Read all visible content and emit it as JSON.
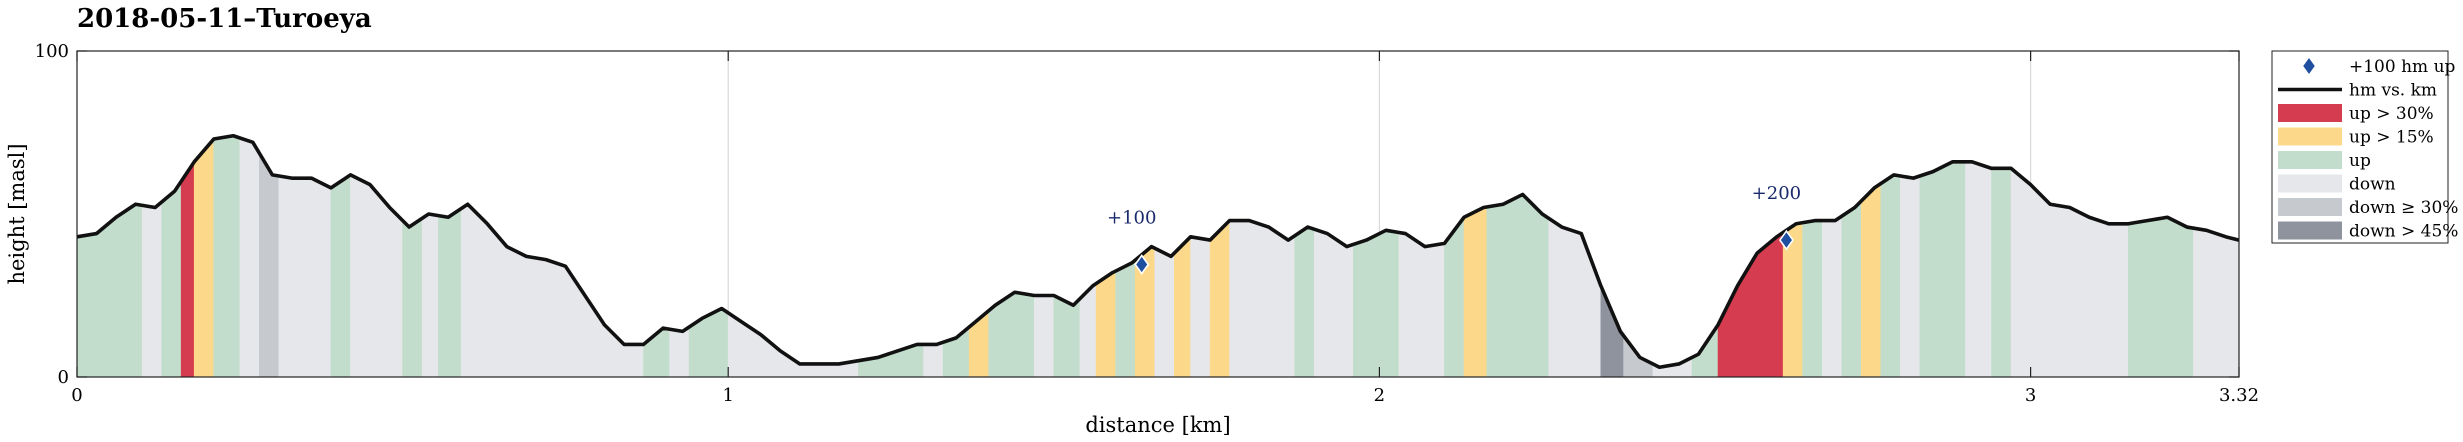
{
  "chart_data": {
    "type": "area",
    "title": "2018-05-11–Turoeya",
    "xlabel": "distance [km]",
    "ylabel": "height [masl]",
    "xlim": [
      0,
      3.32
    ],
    "ylim": [
      0,
      100
    ],
    "xticks": [
      0,
      1,
      2,
      3,
      3.32
    ],
    "xtick_labels": [
      "0",
      "1",
      "2",
      "3",
      "3.32"
    ],
    "yticks": [
      0,
      100
    ],
    "ytick_labels": [
      "0",
      "100"
    ],
    "grid": "vertical",
    "legend_position": "outside-right",
    "legend": [
      {
        "key": "marker",
        "label": "+100 hm up"
      },
      {
        "key": "line",
        "label": "hm vs. km"
      },
      {
        "key": "up30",
        "label": "up > 30%"
      },
      {
        "key": "up15",
        "label": "up > 15%"
      },
      {
        "key": "up",
        "label": "up"
      },
      {
        "key": "down",
        "label": "down"
      },
      {
        "key": "down30",
        "label": "down ≥ 30%"
      },
      {
        "key": "down45",
        "label": "down > 45%"
      }
    ],
    "colors": {
      "up30": "#d63c4f",
      "up15": "#fcd98a",
      "up": "#c2ddcb",
      "down": "#e6e7ea",
      "down30": "#c6c9ce",
      "down45": "#8f939e",
      "line": "#111111",
      "marker": "#1f4fa0"
    },
    "profile": {
      "x": [
        0,
        0.03,
        0.06,
        0.09,
        0.12,
        0.15,
        0.18,
        0.21,
        0.24,
        0.27,
        0.3,
        0.33,
        0.36,
        0.39,
        0.42,
        0.45,
        0.48,
        0.51,
        0.54,
        0.57,
        0.6,
        0.63,
        0.66,
        0.69,
        0.72,
        0.75,
        0.78,
        0.81,
        0.84,
        0.87,
        0.9,
        0.93,
        0.96,
        0.99,
        1.02,
        1.05,
        1.08,
        1.11,
        1.14,
        1.17,
        1.2,
        1.23,
        1.26,
        1.29,
        1.32,
        1.35,
        1.38,
        1.41,
        1.44,
        1.47,
        1.5,
        1.53,
        1.56,
        1.59,
        1.62,
        1.65,
        1.68,
        1.71,
        1.74,
        1.77,
        1.8,
        1.83,
        1.86,
        1.89,
        1.92,
        1.95,
        1.98,
        2.01,
        2.04,
        2.07,
        2.1,
        2.13,
        2.16,
        2.19,
        2.22,
        2.25,
        2.28,
        2.31,
        2.34,
        2.37,
        2.4,
        2.43,
        2.46,
        2.49,
        2.52,
        2.55,
        2.58,
        2.61,
        2.64,
        2.67,
        2.7,
        2.73,
        2.76,
        2.79,
        2.82,
        2.85,
        2.88,
        2.91,
        2.94,
        2.97,
        3.0,
        3.03,
        3.06,
        3.09,
        3.12,
        3.15,
        3.18,
        3.21,
        3.24,
        3.27,
        3.3,
        3.32
      ],
      "y": [
        43,
        44,
        49,
        53,
        52,
        57,
        66,
        73,
        74,
        72,
        62,
        61,
        61,
        58,
        62,
        59,
        52,
        46,
        50,
        49,
        53,
        47,
        40,
        37,
        36,
        34,
        25,
        16,
        10,
        10,
        15,
        14,
        18,
        21,
        17,
        13,
        8,
        4,
        4,
        4,
        5,
        6,
        8,
        10,
        10,
        12,
        17,
        22,
        26,
        25,
        25,
        22,
        28,
        32,
        35,
        40,
        37,
        43,
        42,
        48,
        48,
        46,
        42,
        46,
        44,
        40,
        42,
        45,
        44,
        40,
        41,
        49,
        52,
        53,
        56,
        50,
        46,
        44,
        28,
        14,
        6,
        3,
        4,
        7,
        16,
        28,
        38,
        43,
        47,
        48,
        48,
        52,
        58,
        62,
        61,
        63,
        66,
        66,
        64,
        64,
        59,
        53,
        52,
        49,
        47,
        47,
        48,
        49,
        46,
        45,
        43,
        42
      ]
    },
    "segments": [
      {
        "x0": 0,
        "x1": 0.1,
        "class": "up"
      },
      {
        "x0": 0.1,
        "x1": 0.13,
        "class": "down"
      },
      {
        "x0": 0.13,
        "x1": 0.16,
        "class": "up"
      },
      {
        "x0": 0.16,
        "x1": 0.18,
        "class": "up30"
      },
      {
        "x0": 0.18,
        "x1": 0.21,
        "class": "up15"
      },
      {
        "x0": 0.21,
        "x1": 0.25,
        "class": "up"
      },
      {
        "x0": 0.25,
        "x1": 0.28,
        "class": "down"
      },
      {
        "x0": 0.28,
        "x1": 0.31,
        "class": "down30"
      },
      {
        "x0": 0.31,
        "x1": 0.39,
        "class": "down"
      },
      {
        "x0": 0.39,
        "x1": 0.42,
        "class": "up"
      },
      {
        "x0": 0.42,
        "x1": 0.5,
        "class": "down"
      },
      {
        "x0": 0.5,
        "x1": 0.53,
        "class": "up"
      },
      {
        "x0": 0.53,
        "x1": 0.555,
        "class": "down"
      },
      {
        "x0": 0.555,
        "x1": 0.59,
        "class": "up"
      },
      {
        "x0": 0.59,
        "x1": 0.87,
        "class": "down"
      },
      {
        "x0": 0.87,
        "x1": 0.91,
        "class": "up"
      },
      {
        "x0": 0.91,
        "x1": 0.94,
        "class": "down"
      },
      {
        "x0": 0.94,
        "x1": 1.0,
        "class": "up"
      },
      {
        "x0": 1.0,
        "x1": 1.2,
        "class": "down"
      },
      {
        "x0": 1.2,
        "x1": 1.3,
        "class": "up"
      },
      {
        "x0": 1.3,
        "x1": 1.33,
        "class": "down"
      },
      {
        "x0": 1.33,
        "x1": 1.37,
        "class": "up"
      },
      {
        "x0": 1.37,
        "x1": 1.4,
        "class": "up15"
      },
      {
        "x0": 1.4,
        "x1": 1.47,
        "class": "up"
      },
      {
        "x0": 1.47,
        "x1": 1.5,
        "class": "down"
      },
      {
        "x0": 1.5,
        "x1": 1.54,
        "class": "up"
      },
      {
        "x0": 1.54,
        "x1": 1.565,
        "class": "down"
      },
      {
        "x0": 1.565,
        "x1": 1.595,
        "class": "up15"
      },
      {
        "x0": 1.595,
        "x1": 1.625,
        "class": "up"
      },
      {
        "x0": 1.625,
        "x1": 1.655,
        "class": "up15"
      },
      {
        "x0": 1.655,
        "x1": 1.685,
        "class": "down"
      },
      {
        "x0": 1.685,
        "x1": 1.71,
        "class": "up15"
      },
      {
        "x0": 1.71,
        "x1": 1.74,
        "class": "down"
      },
      {
        "x0": 1.74,
        "x1": 1.77,
        "class": "up15"
      },
      {
        "x0": 1.77,
        "x1": 1.87,
        "class": "down"
      },
      {
        "x0": 1.87,
        "x1": 1.9,
        "class": "up"
      },
      {
        "x0": 1.9,
        "x1": 1.96,
        "class": "down"
      },
      {
        "x0": 1.96,
        "x1": 2.03,
        "class": "up"
      },
      {
        "x0": 2.03,
        "x1": 2.1,
        "class": "down"
      },
      {
        "x0": 2.1,
        "x1": 2.13,
        "class": "up"
      },
      {
        "x0": 2.13,
        "x1": 2.165,
        "class": "up15"
      },
      {
        "x0": 2.165,
        "x1": 2.26,
        "class": "up"
      },
      {
        "x0": 2.26,
        "x1": 2.34,
        "class": "down"
      },
      {
        "x0": 2.34,
        "x1": 2.375,
        "class": "down45"
      },
      {
        "x0": 2.375,
        "x1": 2.42,
        "class": "down30"
      },
      {
        "x0": 2.42,
        "x1": 2.48,
        "class": "down"
      },
      {
        "x0": 2.48,
        "x1": 2.52,
        "class": "up"
      },
      {
        "x0": 2.52,
        "x1": 2.62,
        "class": "up30"
      },
      {
        "x0": 2.62,
        "x1": 2.65,
        "class": "up15"
      },
      {
        "x0": 2.65,
        "x1": 2.68,
        "class": "up"
      },
      {
        "x0": 2.68,
        "x1": 2.71,
        "class": "down"
      },
      {
        "x0": 2.71,
        "x1": 2.74,
        "class": "up"
      },
      {
        "x0": 2.74,
        "x1": 2.77,
        "class": "up15"
      },
      {
        "x0": 2.77,
        "x1": 2.8,
        "class": "up"
      },
      {
        "x0": 2.8,
        "x1": 2.83,
        "class": "down"
      },
      {
        "x0": 2.83,
        "x1": 2.9,
        "class": "up"
      },
      {
        "x0": 2.9,
        "x1": 2.94,
        "class": "down"
      },
      {
        "x0": 2.94,
        "x1": 2.97,
        "class": "up"
      },
      {
        "x0": 2.97,
        "x1": 3.15,
        "class": "down"
      },
      {
        "x0": 3.15,
        "x1": 3.25,
        "class": "up"
      },
      {
        "x0": 3.25,
        "x1": 3.28,
        "class": "down"
      },
      {
        "x0": 3.28,
        "x1": 3.32,
        "class": "down"
      }
    ],
    "markers": [
      {
        "x": 1.635,
        "y": 34.5,
        "label": "+100"
      },
      {
        "x": 2.625,
        "y": 42,
        "label": "+200"
      }
    ]
  }
}
